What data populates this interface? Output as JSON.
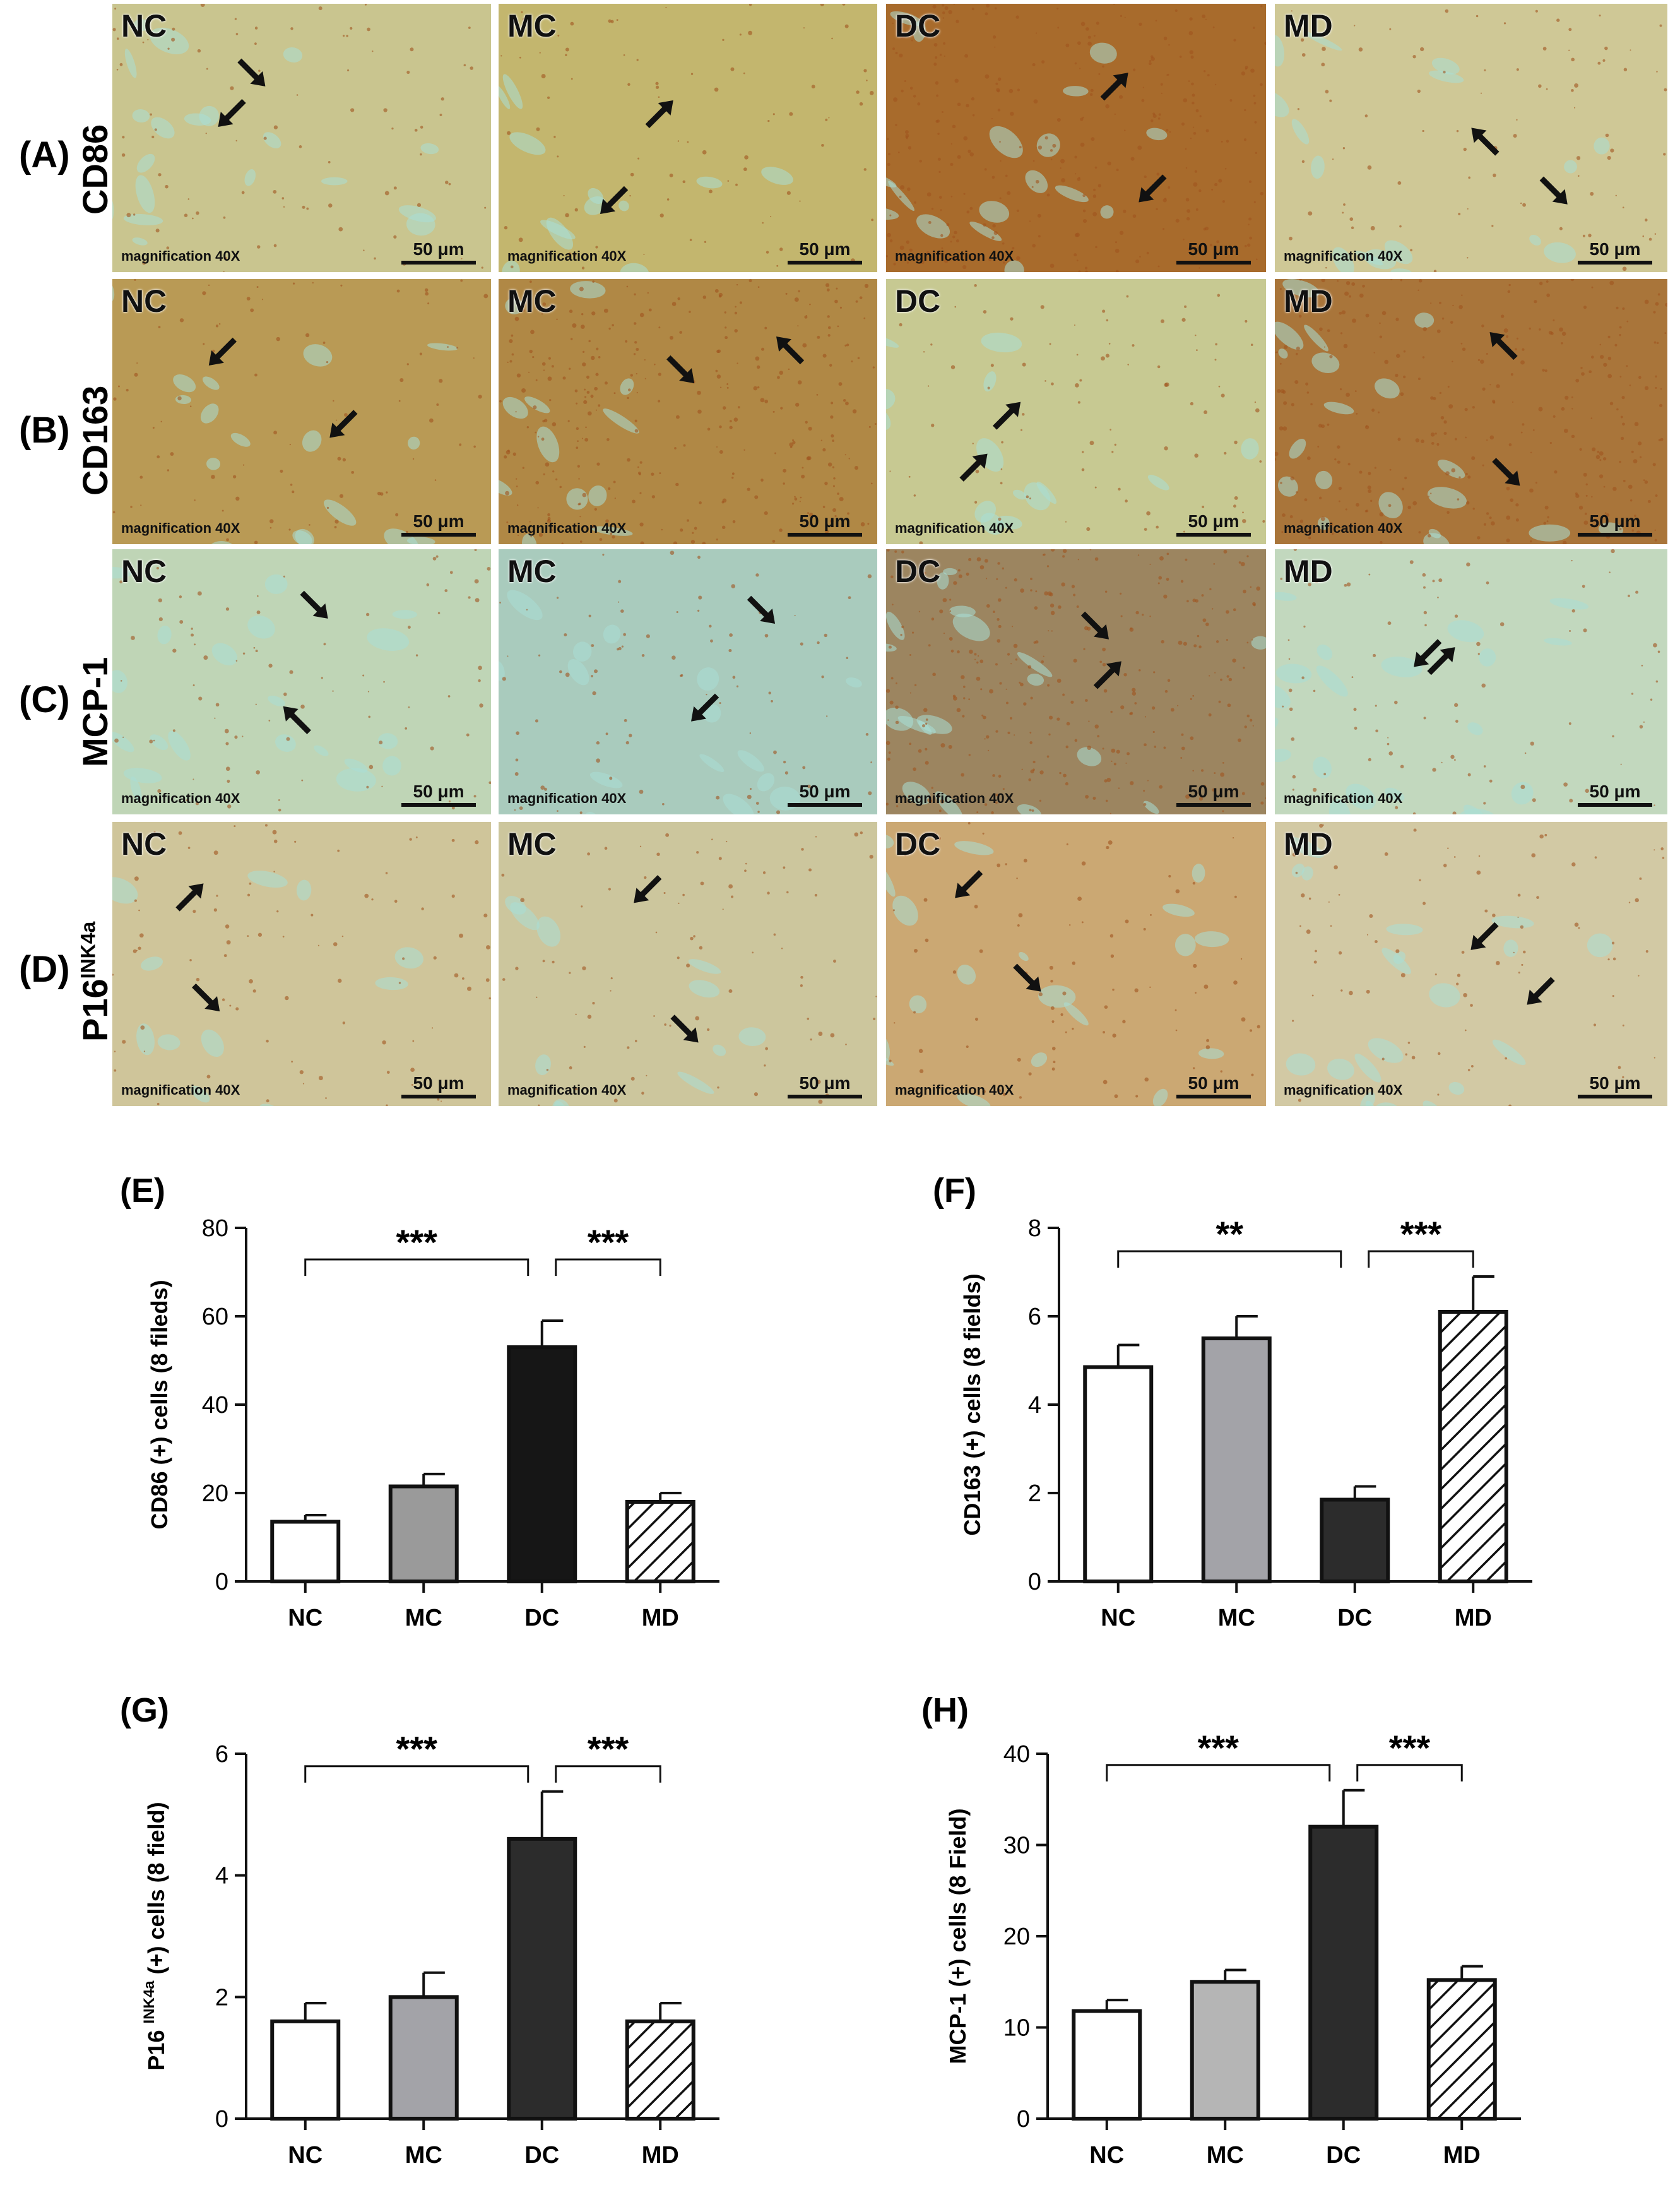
{
  "micrographs": {
    "rows": [
      {
        "label": "(A)",
        "marker": "CD86",
        "marker_sup": ""
      },
      {
        "label": "(B)",
        "marker": "CD163",
        "marker_sup": ""
      },
      {
        "label": "(C)",
        "marker": "MCP-1",
        "marker_sup": ""
      },
      {
        "label": "(D)",
        "marker": "P16",
        "marker_sup": "INK4a"
      }
    ],
    "columns": [
      "NC",
      "MC",
      "DC",
      "MD"
    ],
    "magnification_text": "magnification 40X",
    "scale_bar_text": "50 μm",
    "tissue_colors": {
      "stain": "#c8a25a",
      "background": "#c4dcc0",
      "lumen": "#a9ded6",
      "brown": "#a0541e"
    }
  },
  "chart_data": [
    {
      "panel": "(E)",
      "type": "bar",
      "categories": [
        "NC",
        "MC",
        "DC",
        "MD"
      ],
      "values": [
        13.5,
        21.5,
        53,
        18
      ],
      "errors": [
        1.5,
        2.8,
        6,
        2
      ],
      "ylabel": "CD86 (+) cells (8 fileds)",
      "ylabel_sup": "",
      "ylim": [
        0,
        80
      ],
      "yticks": [
        0,
        20,
        40,
        60,
        80
      ],
      "bar_fills": [
        "#ffffff",
        "#9a9a9a",
        "#161616",
        "hatch"
      ],
      "significance": [
        {
          "from": 0,
          "to": 2,
          "label": "***"
        },
        {
          "from": 2,
          "to": 3,
          "label": "***"
        }
      ]
    },
    {
      "panel": "(F)",
      "type": "bar",
      "categories": [
        "NC",
        "MC",
        "DC",
        "MD"
      ],
      "values": [
        4.85,
        5.5,
        1.85,
        6.1
      ],
      "errors": [
        0.5,
        0.5,
        0.3,
        0.8
      ],
      "ylabel": "CD163 (+) cells (8 fields)",
      "ylabel_sup": "",
      "ylim": [
        0,
        8
      ],
      "yticks": [
        0,
        2,
        4,
        6,
        8
      ],
      "bar_fills": [
        "#ffffff",
        "#a3a3a8",
        "#2c2c2c",
        "hatch"
      ],
      "significance": [
        {
          "from": 0,
          "to": 2,
          "label": "**"
        },
        {
          "from": 2,
          "to": 3,
          "label": "***"
        }
      ]
    },
    {
      "panel": "(G)",
      "type": "bar",
      "categories": [
        "NC",
        "MC",
        "DC",
        "MD"
      ],
      "values": [
        1.6,
        2.0,
        4.6,
        1.6
      ],
      "errors": [
        0.3,
        0.4,
        0.78,
        0.3
      ],
      "ylabel": "P16",
      "ylabel_sup": "INK4a",
      "ylabel_rest": "(+) cells (8 field)",
      "ylim": [
        0,
        6
      ],
      "yticks": [
        0,
        2,
        4,
        6
      ],
      "bar_fills": [
        "#ffffff",
        "#a3a3a8",
        "#2c2c2c",
        "hatch"
      ],
      "significance": [
        {
          "from": 0,
          "to": 2,
          "label": "***"
        },
        {
          "from": 2,
          "to": 3,
          "label": "***"
        }
      ]
    },
    {
      "panel": "(H)",
      "type": "bar",
      "categories": [
        "NC",
        "MC",
        "DC",
        "MD"
      ],
      "values": [
        11.8,
        15.0,
        32,
        15.2
      ],
      "errors": [
        1.2,
        1.3,
        4,
        1.5
      ],
      "ylabel": "MCP-1 (+) cells (8 Field)",
      "ylabel_sup": "",
      "ylim": [
        0,
        40
      ],
      "yticks": [
        0,
        10,
        20,
        30,
        40
      ],
      "bar_fills": [
        "#ffffff",
        "#b5b5b5",
        "#2c2c2c",
        "hatch"
      ],
      "significance": [
        {
          "from": 0,
          "to": 2,
          "label": "***"
        },
        {
          "from": 2,
          "to": 3,
          "label": "***"
        }
      ]
    }
  ]
}
